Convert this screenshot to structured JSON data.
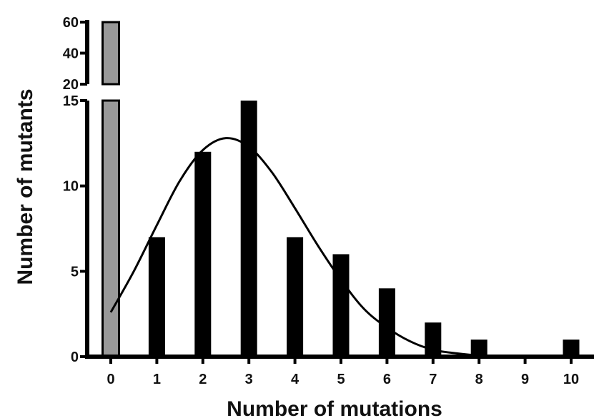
{
  "chart_data": {
    "type": "bar",
    "title": "",
    "xlabel": "Number of mutations",
    "ylabel": "Number of mutants",
    "categories": [
      "0",
      "1",
      "2",
      "3",
      "4",
      "5",
      "6",
      "7",
      "8",
      "9",
      "10"
    ],
    "series": [
      {
        "values": [
          60,
          7,
          12,
          15,
          7,
          6,
          4,
          2,
          1,
          0,
          1
        ],
        "colors": [
          "#999999",
          "#000000",
          "#000000",
          "#000000",
          "#000000",
          "#000000",
          "#000000",
          "#000000",
          "#000000",
          "#000000",
          "#000000"
        ]
      }
    ],
    "fit_curve": {
      "type": "line",
      "color": "#000000",
      "x": [
        0,
        0.5,
        1,
        1.5,
        2,
        2.5,
        3,
        3.5,
        4,
        4.5,
        5,
        5.5,
        6,
        6.5,
        7,
        7.5,
        8,
        8.5,
        9,
        9.5,
        10
      ],
      "y": [
        2.6,
        5.0,
        7.7,
        10.3,
        12.1,
        12.8,
        12.3,
        10.8,
        8.7,
        6.5,
        4.5,
        2.8,
        1.7,
        0.9,
        0.4,
        0.2,
        0.07,
        0.03,
        0.01,
        0.0,
        0.0
      ]
    },
    "y_axis_broken": true,
    "y_upper_ticks": [
      20,
      40,
      60
    ],
    "y_lower_ticks": [
      0,
      5,
      10,
      15
    ],
    "y_break": [
      15,
      20
    ],
    "ylim": [
      0,
      60
    ],
    "grid": false,
    "legend": "none"
  }
}
